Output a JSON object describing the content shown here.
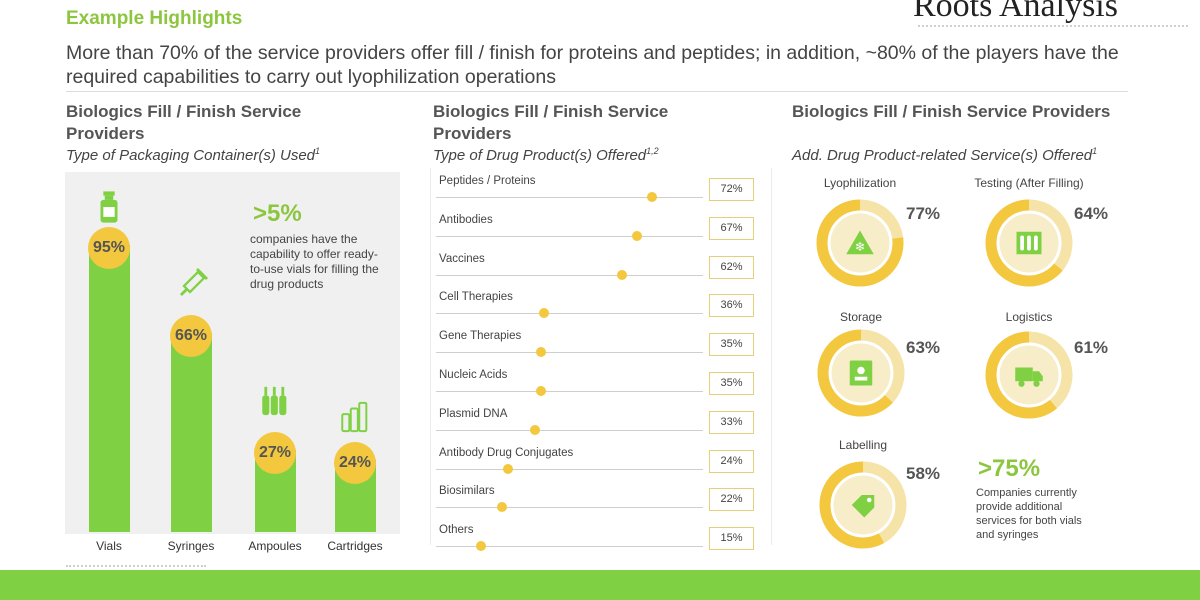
{
  "header": {
    "eyebrow": "Example Highlights",
    "brand": "Roots Analysis",
    "headline": "More than 70% of the service providers offer fill / finish for proteins and peptides; in addition, ~80% of the players have the required capabilities to carry out lyophilization operations"
  },
  "colors": {
    "accent_green": "#8cc63f",
    "bar_green": "#7fd143",
    "gold": "#f3c83e",
    "donut_track": "#f5e3a8"
  },
  "chart_data": [
    {
      "type": "bar",
      "title": "Biologics Fill / Finish Service Providers",
      "subtitle": "Type of Packaging Container(s) Used",
      "subtitle_mark": "1",
      "categories": [
        "Vials",
        "Syringes",
        "Ampoules",
        "Cartridges"
      ],
      "icons": [
        "vial-icon",
        "syringe-icon",
        "ampoules-icon",
        "cartridges-icon"
      ],
      "values": [
        95,
        66,
        27,
        24
      ],
      "value_labels": [
        "95%",
        "66%",
        "27%",
        "24%"
      ],
      "ylim": [
        0,
        100
      ],
      "callout": {
        "value": ">5%",
        "text": "companies have the capability to offer ready-to-use vials for filling the drug products"
      }
    },
    {
      "type": "bar",
      "orientation": "horizontal",
      "title": "Biologics Fill / Finish Service Providers",
      "subtitle": "Type of Drug Product(s) Offered",
      "subtitle_mark": "1,2",
      "categories": [
        "Peptides / Proteins",
        "Antibodies",
        "Vaccines",
        "Cell Therapies",
        "Gene Therapies",
        "Nucleic Acids",
        "Plasmid DNA",
        "Antibody Drug Conjugates",
        "Biosimilars",
        "Others"
      ],
      "values": [
        72,
        67,
        62,
        36,
        35,
        35,
        33,
        24,
        22,
        15
      ],
      "value_labels": [
        "72%",
        "67%",
        "62%",
        "36%",
        "35%",
        "35%",
        "33%",
        "24%",
        "22%",
        "15%"
      ],
      "xlim": [
        0,
        100
      ]
    },
    {
      "type": "pie",
      "style": "donut",
      "title": "Biologics Fill / Finish Service Providers",
      "subtitle": "Add. Drug Product-related Service(s) Offered",
      "subtitle_mark": "1",
      "categories": [
        "Lyophilization",
        "Testing (After Filling)",
        "Storage",
        "Logistics",
        "Labelling"
      ],
      "icons": [
        "snowflake-icon",
        "test-tubes-icon",
        "storage-book-icon",
        "truck-icon",
        "tag-icon"
      ],
      "values": [
        77,
        64,
        63,
        61,
        58
      ],
      "value_labels": [
        "77%",
        "64%",
        "63%",
        "61%",
        "58%"
      ],
      "callout": {
        "value": ">75%",
        "text": "Companies currently provide additional services for both vials and syringes"
      }
    }
  ]
}
